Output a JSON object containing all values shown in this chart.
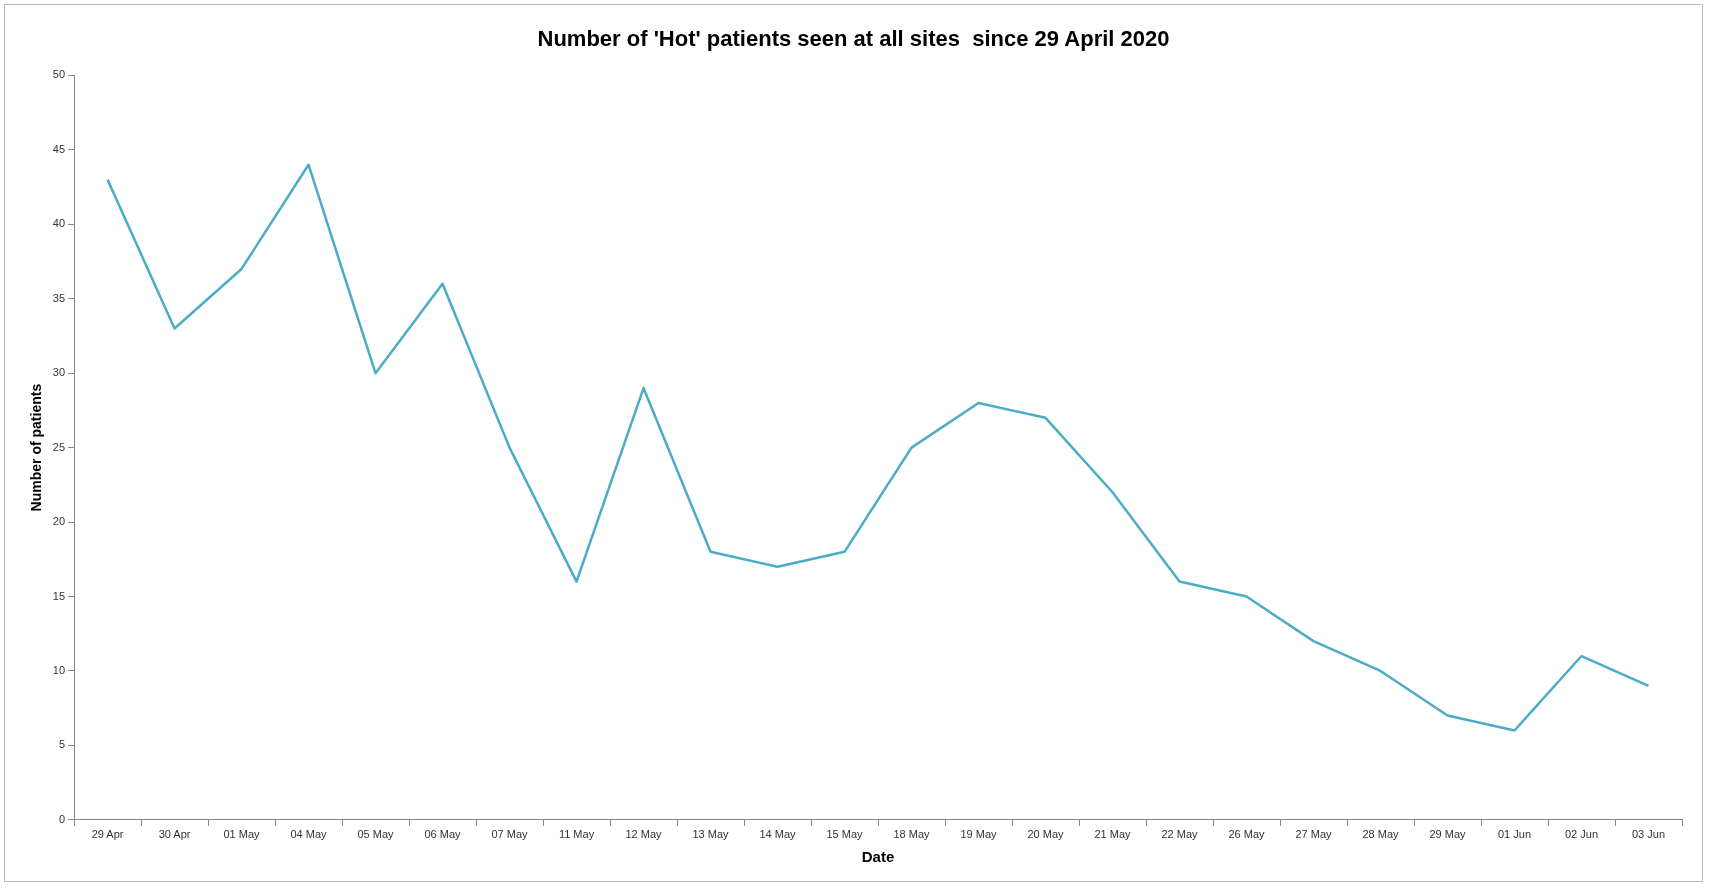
{
  "chart_data": {
    "type": "line",
    "title": "Number of 'Hot' patients seen at all sites  since 29 April 2020",
    "xlabel": "Date",
    "ylabel": "Number of patients",
    "categories": [
      "29 Apr",
      "30 Apr",
      "01 May",
      "04 May",
      "05 May",
      "06 May",
      "07 May",
      "11 May",
      "12 May",
      "13 May",
      "14 May",
      "15 May",
      "18 May",
      "19 May",
      "20 May",
      "21 May",
      "22 May",
      "26 May",
      "27 May",
      "28 May",
      "29 May",
      "01 Jun",
      "02 Jun",
      "03 Jun"
    ],
    "series": [
      {
        "color": "#4bacc6",
        "values": [
          43,
          33,
          37,
          44,
          30,
          36,
          25,
          16,
          29,
          18,
          17,
          18,
          25,
          28,
          27,
          22,
          16,
          15,
          12,
          10,
          7,
          6,
          11,
          9
        ]
      }
    ],
    "ylim": [
      0,
      50
    ],
    "yticks": [
      0,
      5,
      10,
      15,
      20,
      25,
      30,
      35,
      40,
      45,
      50
    ],
    "grid": false,
    "legend": false,
    "marker": "none",
    "line_style": "solid"
  }
}
